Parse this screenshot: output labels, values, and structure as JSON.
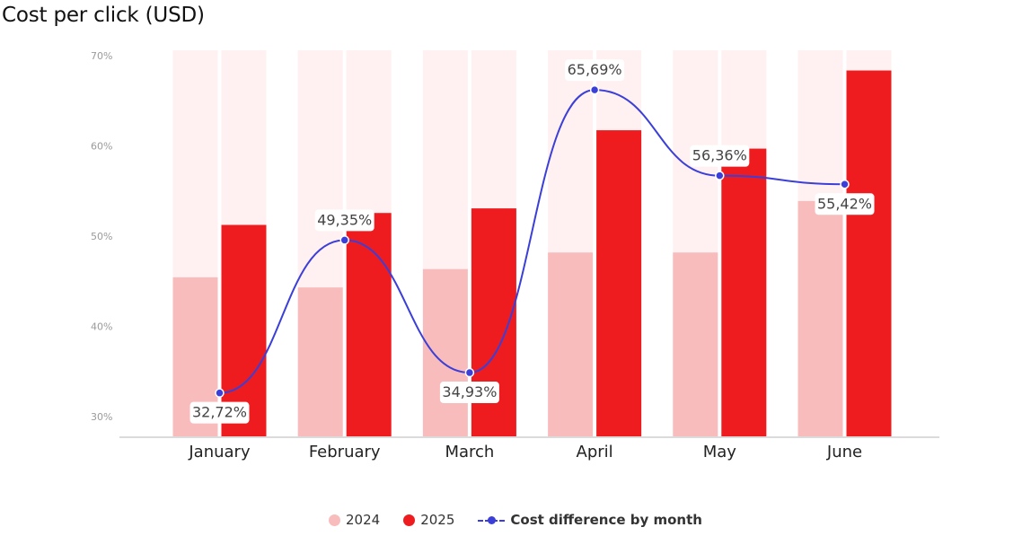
{
  "title": "Cost per click (USD)",
  "legend": {
    "s2024": "2024",
    "s2025": "2025",
    "line": "Cost difference by month"
  },
  "colors": {
    "bar2024": "#f9bcbc",
    "bar2025": "#ee1c1f",
    "background_bar": "#fff1f1",
    "line": "#3b3fd8"
  },
  "chart_data": {
    "type": "bar",
    "categories": [
      "January",
      "February",
      "March",
      "April",
      "May",
      "June"
    ],
    "series": [
      {
        "name": "2024",
        "values": [
          45.3,
          44.2,
          46.2,
          48.0,
          48.0,
          53.6
        ]
      },
      {
        "name": "2025",
        "values": [
          51.0,
          52.3,
          52.8,
          61.3,
          59.3,
          67.8
        ]
      },
      {
        "name": "Cost difference by month",
        "type": "line",
        "values": [
          32.72,
          49.35,
          34.93,
          65.69,
          56.36,
          55.42
        ],
        "labels": [
          "32,72%",
          "49,35%",
          "34,93%",
          "65,69%",
          "56,36%",
          "55,42%"
        ]
      }
    ],
    "yticks": [
      "30%",
      "40%",
      "50%",
      "60%",
      "70%"
    ],
    "ytick_values": [
      30,
      40,
      50,
      60,
      70
    ],
    "ylim": [
      28,
      70
    ],
    "grid": false,
    "legend_position": "bottom-center"
  }
}
